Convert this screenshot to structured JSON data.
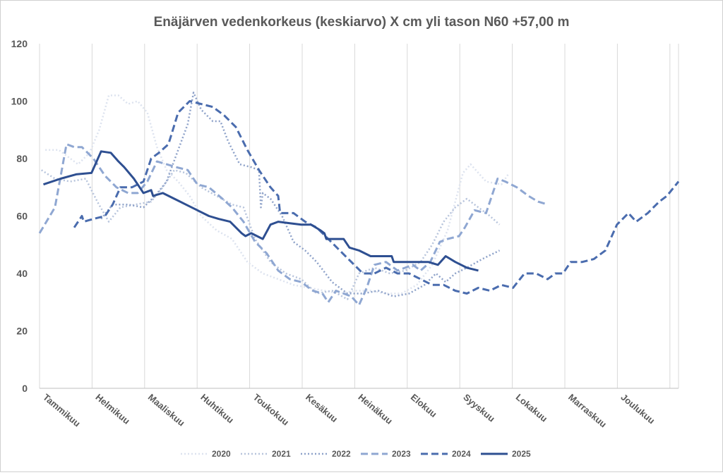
{
  "chart_data": {
    "type": "line",
    "title": "Enäjärven vedenkorkeus (keskiarvo) X cm yli tason N60 +57,00 m",
    "xlabel": "",
    "ylabel": "",
    "ylim": [
      0,
      120
    ],
    "yticks": [
      "0",
      "20",
      "40",
      "60",
      "80",
      "100",
      "120"
    ],
    "months": [
      "Tammikuu",
      "Helmikuu",
      "Maaliskuu",
      "Huhtikuu",
      "Toukokuu",
      "Kesäkuu",
      "Heinäkuu",
      "Elokuu",
      "Syyskuu",
      "Lokakuu",
      "Marraskuu",
      "Joulukuu"
    ],
    "grid": "vertical",
    "legend_position": "bottom",
    "series": [
      {
        "name": "2020",
        "color": "#dde3ef",
        "dash": "2 3",
        "width": 2.5,
        "points": [
          [
            0.15,
            83
          ],
          [
            0.5,
            83
          ],
          [
            1.0,
            78
          ],
          [
            1.3,
            82
          ],
          [
            1.55,
            90
          ],
          [
            1.8,
            102
          ],
          [
            2.05,
            102
          ],
          [
            2.3,
            99
          ],
          [
            2.55,
            100
          ],
          [
            2.8,
            96
          ],
          [
            3.05,
            84
          ],
          [
            3.3,
            76
          ],
          [
            3.6,
            72
          ],
          [
            3.9,
            67
          ],
          [
            4.2,
            60
          ],
          [
            4.6,
            55
          ],
          [
            5.0,
            52
          ],
          [
            5.4,
            44
          ],
          [
            5.8,
            40
          ],
          [
            6.2,
            38
          ],
          [
            6.6,
            36
          ],
          [
            7.0,
            35
          ],
          [
            7.4,
            34
          ],
          [
            7.8,
            33
          ],
          [
            8.2,
            34
          ],
          [
            8.6,
            34
          ],
          [
            9.0,
            33
          ],
          [
            9.4,
            33
          ],
          [
            9.8,
            36
          ],
          [
            10.2,
            43
          ],
          [
            10.6,
            55
          ],
          [
            11.0,
            75
          ],
          [
            11.2,
            78
          ],
          [
            11.6,
            72
          ],
          [
            12.0,
            71
          ],
          [
            12.2,
            75
          ]
        ]
      },
      {
        "name": "2021",
        "color": "#b7c4dc",
        "dash": "2 3",
        "width": 2.5,
        "points": [
          [
            0.05,
            76
          ],
          [
            0.4,
            73
          ],
          [
            0.8,
            72
          ],
          [
            1.2,
            73
          ],
          [
            1.5,
            65
          ],
          [
            1.8,
            58
          ],
          [
            2.1,
            63
          ],
          [
            2.5,
            64
          ],
          [
            2.9,
            65
          ],
          [
            3.2,
            70
          ],
          [
            3.5,
            76
          ],
          [
            3.8,
            75
          ],
          [
            4.2,
            70
          ],
          [
            4.6,
            67
          ],
          [
            5.0,
            64
          ],
          [
            5.3,
            63
          ],
          [
            5.6,
            52
          ],
          [
            6.0,
            44
          ],
          [
            6.4,
            40
          ],
          [
            6.8,
            38
          ],
          [
            7.2,
            33
          ],
          [
            7.6,
            34
          ],
          [
            8.0,
            31
          ],
          [
            8.3,
            40
          ],
          [
            8.7,
            42
          ],
          [
            9.1,
            40
          ],
          [
            9.5,
            41
          ],
          [
            9.9,
            44
          ],
          [
            10.2,
            50
          ],
          [
            10.5,
            58
          ],
          [
            10.8,
            63
          ],
          [
            11.1,
            66
          ],
          [
            11.4,
            63
          ],
          [
            11.7,
            60
          ],
          [
            11.95,
            57
          ]
        ]
      },
      {
        "name": "2022",
        "color": "#8ea2c9",
        "dash": "2 3",
        "width": 2.5,
        "points": [
          [
            1.6,
            59
          ],
          [
            1.9,
            64
          ],
          [
            2.3,
            64
          ],
          [
            2.7,
            63
          ],
          [
            3.0,
            67
          ],
          [
            3.3,
            72
          ],
          [
            3.6,
            83
          ],
          [
            3.85,
            92
          ],
          [
            4.0,
            103
          ],
          [
            4.2,
            97
          ],
          [
            4.5,
            93
          ],
          [
            4.7,
            93
          ],
          [
            4.9,
            86
          ],
          [
            5.2,
            78
          ],
          [
            5.5,
            77
          ],
          [
            5.7,
            76
          ],
          [
            5.75,
            63
          ],
          [
            5.8,
            68
          ],
          [
            6.0,
            66
          ],
          [
            6.3,
            60
          ],
          [
            6.6,
            51
          ],
          [
            6.9,
            48
          ],
          [
            7.2,
            44
          ],
          [
            7.6,
            37
          ],
          [
            8.0,
            33
          ],
          [
            8.4,
            33
          ],
          [
            8.8,
            34
          ],
          [
            9.2,
            32
          ],
          [
            9.6,
            33
          ],
          [
            10.0,
            36
          ],
          [
            10.3,
            40
          ],
          [
            10.55,
            37
          ],
          [
            10.8,
            40
          ],
          [
            11.1,
            42
          ],
          [
            11.5,
            45
          ],
          [
            11.95,
            48
          ]
        ]
      },
      {
        "name": "2023",
        "color": "#8fa7d2",
        "dash": "10 5",
        "width": 3,
        "points": [
          [
            0.0,
            54
          ],
          [
            0.4,
            63
          ],
          [
            0.7,
            85
          ],
          [
            0.9,
            84
          ],
          [
            1.1,
            84
          ],
          [
            1.4,
            80
          ],
          [
            1.7,
            74
          ],
          [
            2.0,
            70
          ],
          [
            2.3,
            68
          ],
          [
            2.55,
            68
          ],
          [
            2.8,
            72
          ],
          [
            3.05,
            79
          ],
          [
            3.3,
            78
          ],
          [
            3.55,
            77
          ],
          [
            3.85,
            76
          ],
          [
            4.1,
            71
          ],
          [
            4.4,
            70
          ],
          [
            4.75,
            66
          ],
          [
            5.0,
            63
          ],
          [
            5.3,
            58
          ],
          [
            5.6,
            51
          ],
          [
            5.9,
            47
          ],
          [
            6.2,
            41
          ],
          [
            6.5,
            38
          ],
          [
            6.8,
            37
          ],
          [
            7.1,
            34
          ],
          [
            7.35,
            33
          ],
          [
            7.5,
            30
          ],
          [
            7.7,
            34
          ],
          [
            7.9,
            33
          ],
          [
            8.1,
            32
          ],
          [
            8.3,
            29
          ],
          [
            8.5,
            35
          ],
          [
            8.7,
            43
          ],
          [
            9.0,
            44
          ],
          [
            9.3,
            41
          ],
          [
            9.5,
            42
          ],
          [
            9.7,
            43
          ],
          [
            9.9,
            41
          ],
          [
            10.15,
            44
          ],
          [
            10.4,
            51
          ],
          [
            10.6,
            52
          ],
          [
            10.9,
            53
          ],
          [
            11.05,
            56
          ],
          [
            11.3,
            62
          ],
          [
            11.6,
            61
          ],
          [
            11.9,
            73
          ],
          [
            12.1,
            72
          ],
          [
            12.4,
            70
          ],
          [
            12.7,
            67
          ],
          [
            12.95,
            65
          ],
          [
            13.2,
            64
          ]
        ]
      },
      {
        "name": "2024",
        "color": "#4a6cae",
        "dash": "10 5",
        "width": 3,
        "points": [
          [
            0.9,
            56
          ],
          [
            1.1,
            60
          ],
          [
            1.15,
            58
          ],
          [
            1.4,
            59
          ],
          [
            1.7,
            60
          ],
          [
            1.9,
            64
          ],
          [
            2.1,
            70
          ],
          [
            2.4,
            70
          ],
          [
            2.7,
            72
          ],
          [
            2.9,
            80
          ],
          [
            3.1,
            82
          ],
          [
            3.35,
            85
          ],
          [
            3.6,
            96
          ],
          [
            3.9,
            100
          ],
          [
            4.2,
            99
          ],
          [
            4.5,
            98
          ],
          [
            4.8,
            95
          ],
          [
            5.1,
            91
          ],
          [
            5.4,
            83
          ],
          [
            5.7,
            76
          ],
          [
            6.0,
            70
          ],
          [
            6.2,
            67
          ],
          [
            6.25,
            61
          ],
          [
            6.6,
            61
          ],
          [
            6.9,
            58
          ],
          [
            7.2,
            56
          ],
          [
            7.5,
            52
          ],
          [
            7.8,
            48
          ],
          [
            8.1,
            44
          ],
          [
            8.4,
            40
          ],
          [
            8.7,
            40
          ],
          [
            9.0,
            42
          ],
          [
            9.3,
            40
          ],
          [
            9.6,
            40
          ],
          [
            9.9,
            38
          ],
          [
            10.2,
            36
          ],
          [
            10.5,
            36
          ],
          [
            10.8,
            34
          ],
          [
            11.1,
            33
          ],
          [
            11.4,
            35
          ],
          [
            11.7,
            34
          ],
          [
            12.0,
            36
          ],
          [
            12.3,
            35
          ],
          [
            12.6,
            40
          ],
          [
            12.9,
            40
          ],
          [
            13.2,
            38
          ],
          [
            13.4,
            40
          ],
          [
            13.6,
            40
          ],
          [
            13.8,
            44
          ],
          [
            14.1,
            44
          ],
          [
            14.4,
            45
          ],
          [
            14.7,
            48
          ],
          [
            15.0,
            57
          ],
          [
            15.3,
            61
          ],
          [
            15.5,
            58
          ],
          [
            15.8,
            61
          ],
          [
            16.1,
            65
          ],
          [
            16.3,
            67
          ],
          [
            16.6,
            72
          ]
        ]
      },
      {
        "name": "2025",
        "color": "#2e4f91",
        "dash": "",
        "width": 3,
        "points": [
          [
            0.1,
            71
          ],
          [
            0.55,
            73
          ],
          [
            0.95,
            74.5
          ],
          [
            1.35,
            75
          ],
          [
            1.6,
            82.5
          ],
          [
            1.85,
            82
          ],
          [
            2.05,
            79
          ],
          [
            2.2,
            77
          ],
          [
            2.45,
            73
          ],
          [
            2.7,
            68
          ],
          [
            2.9,
            69
          ],
          [
            2.95,
            67
          ],
          [
            3.2,
            68
          ],
          [
            3.5,
            66
          ],
          [
            3.8,
            64
          ],
          [
            4.1,
            62
          ],
          [
            4.4,
            60
          ],
          [
            4.65,
            59
          ],
          [
            4.95,
            58
          ],
          [
            5.25,
            54
          ],
          [
            5.35,
            53
          ],
          [
            5.5,
            54
          ],
          [
            5.8,
            52
          ],
          [
            6.0,
            57
          ],
          [
            6.2,
            58
          ],
          [
            6.5,
            57.5
          ],
          [
            6.8,
            57
          ],
          [
            7.05,
            57
          ],
          [
            7.3,
            55
          ],
          [
            7.4,
            54
          ],
          [
            7.45,
            52
          ],
          [
            7.7,
            52
          ],
          [
            7.9,
            52
          ],
          [
            8.05,
            49
          ],
          [
            8.3,
            48
          ],
          [
            8.6,
            46
          ],
          [
            8.9,
            46
          ],
          [
            9.15,
            46
          ],
          [
            9.2,
            44
          ],
          [
            9.5,
            44
          ],
          [
            9.8,
            44
          ],
          [
            10.1,
            44
          ],
          [
            10.35,
            43
          ],
          [
            10.55,
            46
          ],
          [
            10.8,
            44
          ],
          [
            11.1,
            42
          ],
          [
            11.4,
            41
          ]
        ]
      }
    ]
  }
}
